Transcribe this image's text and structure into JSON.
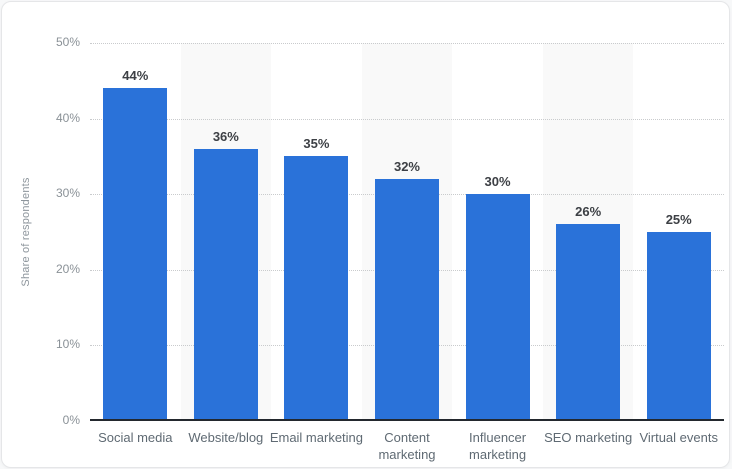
{
  "chart_data": {
    "type": "bar",
    "title": "",
    "xlabel": "",
    "ylabel": "Share of respondents",
    "categories": [
      "Social media",
      "Website/blog",
      "Email marketing",
      "Content marketing",
      "Influencer marketing",
      "SEO marketing",
      "Virtual events"
    ],
    "values": [
      44,
      36,
      35,
      32,
      30,
      26,
      25
    ],
    "value_labels": [
      "44%",
      "36%",
      "35%",
      "32%",
      "30%",
      "26%",
      "25%"
    ],
    "ylim": [
      0,
      50
    ],
    "yticks": [
      0,
      10,
      20,
      30,
      40,
      50
    ],
    "ytick_labels": [
      "0%",
      "10%",
      "20%",
      "30%",
      "40%",
      "50%"
    ],
    "grid": "horizontal-dotted",
    "legend": "none",
    "bar_color": "#2a72d9",
    "alt_column_bg": "#f9f9f9"
  }
}
